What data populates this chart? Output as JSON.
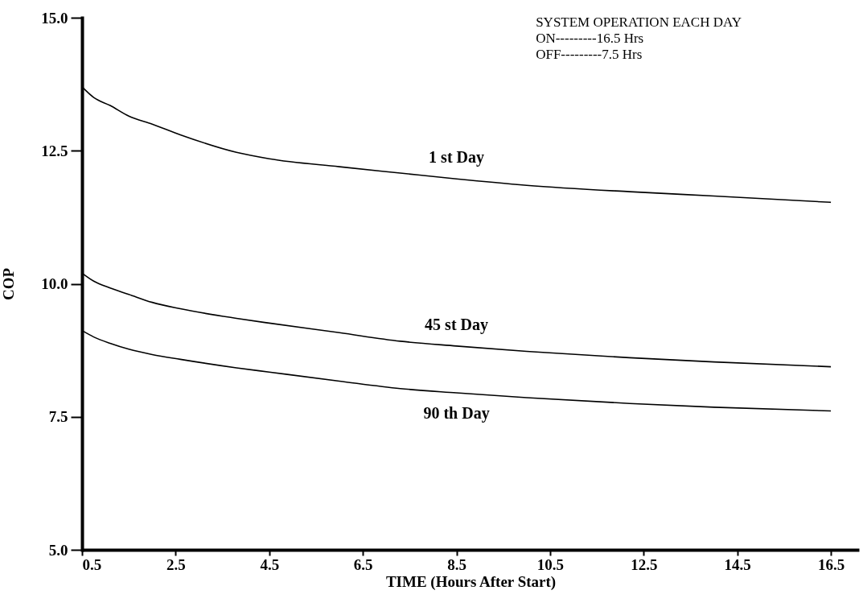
{
  "chart_data": {
    "type": "line",
    "xlabel": "TIME (Hours After Start)",
    "ylabel": "COP",
    "x": [
      0.5,
      0.75,
      1.1,
      1.5,
      2.0,
      2.6,
      3.8,
      4.5,
      6,
      7.3,
      8.5,
      10,
      12.2,
      14,
      16.5
    ],
    "series": [
      {
        "name": "1 st Day",
        "color": "#000000",
        "values": [
          13.7,
          13.5,
          13.35,
          13.15,
          13.0,
          12.8,
          12.47,
          12.35,
          12.2,
          12.08,
          11.97,
          11.85,
          11.73,
          11.65,
          11.53
        ]
      },
      {
        "name": "45 st Day",
        "color": "#000000",
        "values": [
          10.2,
          10.05,
          9.92,
          9.8,
          9.65,
          9.53,
          9.35,
          9.26,
          9.08,
          8.92,
          8.83,
          8.73,
          8.61,
          8.53,
          8.44
        ]
      },
      {
        "name": "90 th Day",
        "color": "#000000",
        "values": [
          9.12,
          9.0,
          8.88,
          8.77,
          8.67,
          8.58,
          8.42,
          8.34,
          8.17,
          8.03,
          7.95,
          7.86,
          7.75,
          7.68,
          7.61
        ]
      }
    ],
    "xlim": [
      0.5,
      17.1
    ],
    "xticks": [
      0.5,
      2.5,
      4.5,
      6.5,
      8.5,
      10.5,
      12.5,
      14.5,
      16.5
    ],
    "ylim": [
      5,
      15
    ],
    "yticks": [
      {
        "value": 5,
        "label": "5.0"
      },
      {
        "value": 7.5,
        "label": "7.5"
      },
      {
        "value": 10,
        "label": "10.0"
      },
      {
        "value": 12.5,
        "label": "12.5"
      },
      {
        "value": 15,
        "label": "15.0"
      }
    ],
    "annotations": [
      "SYSTEM OPERATION EACH DAY",
      "ON---------16.5 Hrs",
      "OFF---------7.5  Hrs"
    ],
    "grid": false,
    "legend": false,
    "marker": "none",
    "line_style": "solid"
  }
}
